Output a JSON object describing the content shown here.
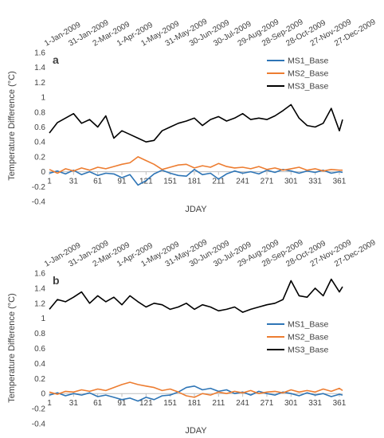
{
  "chart_data": [
    {
      "type": "line",
      "panel_label": "a",
      "xlabel": "JDAY",
      "ylabel": "Temperature Difference (°C)",
      "ylim": [
        -0.4,
        1.6
      ],
      "yticks": [
        "-0.4",
        "-0.2",
        "0",
        "0.2",
        "0.4",
        "0.6",
        "0.8",
        "1",
        "1.2",
        "1.4",
        "1.6"
      ],
      "xlim": [
        1,
        365
      ],
      "xticks": [
        "1",
        "31",
        "61",
        "91",
        "121",
        "151",
        "181",
        "211",
        "241",
        "271",
        "301",
        "331",
        "361"
      ],
      "date_ticks": [
        "1-Jan-2009",
        "31-Jan-2009",
        "2-Mar-2009",
        "1-Apr-2009",
        "1-May-2009",
        "31-May-2009",
        "30-Jun-2009",
        "30-Jul-2009",
        "29-Aug-2009",
        "28-Sep-2009",
        "28-Oct-2009",
        "27-Nov-2009",
        "27-Dec-2009"
      ],
      "grid": false,
      "legend_position": "top-right",
      "x": [
        1,
        11,
        21,
        31,
        41,
        51,
        61,
        71,
        81,
        91,
        101,
        111,
        121,
        131,
        141,
        151,
        161,
        171,
        181,
        191,
        201,
        211,
        221,
        231,
        241,
        251,
        261,
        271,
        281,
        291,
        301,
        311,
        321,
        331,
        341,
        351,
        361,
        365
      ],
      "series": [
        {
          "name": "MS1_Base",
          "color": "#2e75b6",
          "values": [
            -0.02,
            0.01,
            -0.03,
            0.02,
            -0.04,
            0.0,
            -0.05,
            -0.02,
            -0.03,
            -0.08,
            -0.04,
            -0.18,
            -0.12,
            -0.03,
            0.02,
            -0.02,
            -0.05,
            -0.06,
            0.03,
            -0.04,
            -0.02,
            -0.1,
            -0.03,
            0.01,
            -0.02,
            0.0,
            -0.03,
            0.02,
            -0.01,
            0.03,
            0.01,
            -0.02,
            0.01,
            -0.01,
            0.02,
            -0.02,
            0.0,
            -0.01
          ]
        },
        {
          "name": "MS2_Base",
          "color": "#ed7d31",
          "values": [
            0.03,
            -0.02,
            0.04,
            0.01,
            0.05,
            0.02,
            0.06,
            0.04,
            0.07,
            0.1,
            0.12,
            0.2,
            0.15,
            0.1,
            0.03,
            0.06,
            0.09,
            0.1,
            0.05,
            0.08,
            0.06,
            0.11,
            0.07,
            0.05,
            0.06,
            0.04,
            0.07,
            0.03,
            0.05,
            0.02,
            0.04,
            0.06,
            0.02,
            0.04,
            0.01,
            0.03,
            0.02,
            0.02
          ]
        },
        {
          "name": "MS3_Base",
          "color": "#000000",
          "values": [
            0.52,
            0.66,
            0.72,
            0.78,
            0.65,
            0.7,
            0.6,
            0.75,
            0.45,
            0.55,
            0.5,
            0.45,
            0.4,
            0.42,
            0.55,
            0.6,
            0.65,
            0.68,
            0.72,
            0.62,
            0.7,
            0.74,
            0.68,
            0.72,
            0.78,
            0.7,
            0.72,
            0.7,
            0.75,
            0.82,
            0.9,
            0.72,
            0.62,
            0.6,
            0.65,
            0.85,
            0.55,
            0.7
          ]
        }
      ]
    },
    {
      "type": "line",
      "panel_label": "b",
      "xlabel": "JDAY",
      "ylabel": "Temperature Difference (°C)",
      "ylim": [
        -0.4,
        1.6
      ],
      "yticks": [
        "-0.4",
        "-0.2",
        "0",
        "0.2",
        "0.4",
        "0.6",
        "0.8",
        "1",
        "1.2",
        "1.4",
        "1.6"
      ],
      "xlim": [
        1,
        365
      ],
      "xticks": [
        "1",
        "31",
        "61",
        "91",
        "121",
        "151",
        "181",
        "211",
        "241",
        "271",
        "301",
        "331",
        "361"
      ],
      "date_ticks": [
        "1-Jan-2009",
        "31-Jan-2009",
        "2-Mar-2009",
        "1-Apr-2009",
        "1-May-2009",
        "31-May-2009",
        "30-Jun-2009",
        "30-Jul-2009",
        "29-Aug-2009",
        "28-Sep-2009",
        "28-Oct-2009",
        "27-Nov-2009",
        "27-Dec-2009"
      ],
      "grid": false,
      "legend_position": "right",
      "x": [
        1,
        11,
        21,
        31,
        41,
        51,
        61,
        71,
        81,
        91,
        101,
        111,
        121,
        131,
        141,
        151,
        161,
        171,
        181,
        191,
        201,
        211,
        221,
        231,
        241,
        251,
        261,
        271,
        281,
        291,
        301,
        311,
        321,
        331,
        341,
        351,
        361,
        365
      ],
      "series": [
        {
          "name": "MS1_Base",
          "color": "#2e75b6",
          "values": [
            -0.02,
            0.01,
            -0.03,
            0.0,
            -0.02,
            0.01,
            -0.04,
            -0.02,
            -0.05,
            -0.08,
            -0.06,
            -0.1,
            -0.05,
            -0.08,
            -0.03,
            -0.02,
            0.02,
            0.08,
            0.1,
            0.05,
            0.07,
            0.03,
            0.05,
            0.0,
            0.02,
            -0.02,
            0.03,
            0.0,
            -0.02,
            0.02,
            0.0,
            -0.03,
            0.01,
            -0.02,
            0.0,
            -0.04,
            -0.01,
            -0.02
          ]
        },
        {
          "name": "MS2_Base",
          "color": "#ed7d31",
          "values": [
            0.02,
            -0.01,
            0.03,
            0.02,
            0.05,
            0.03,
            0.06,
            0.04,
            0.08,
            0.12,
            0.15,
            0.12,
            0.1,
            0.08,
            0.04,
            0.06,
            0.02,
            -0.03,
            -0.05,
            0.0,
            -0.02,
            0.02,
            0.0,
            0.03,
            0.01,
            0.04,
            0.0,
            0.02,
            0.03,
            0.01,
            0.05,
            0.02,
            0.04,
            0.02,
            0.06,
            0.03,
            0.07,
            0.04
          ]
        },
        {
          "name": "MS3_Base",
          "color": "#000000",
          "values": [
            1.12,
            1.25,
            1.22,
            1.28,
            1.35,
            1.2,
            1.3,
            1.22,
            1.28,
            1.18,
            1.3,
            1.22,
            1.15,
            1.2,
            1.18,
            1.12,
            1.15,
            1.2,
            1.12,
            1.18,
            1.15,
            1.1,
            1.12,
            1.15,
            1.08,
            1.12,
            1.15,
            1.18,
            1.2,
            1.25,
            1.5,
            1.3,
            1.28,
            1.4,
            1.3,
            1.52,
            1.35,
            1.42
          ]
        }
      ]
    }
  ]
}
